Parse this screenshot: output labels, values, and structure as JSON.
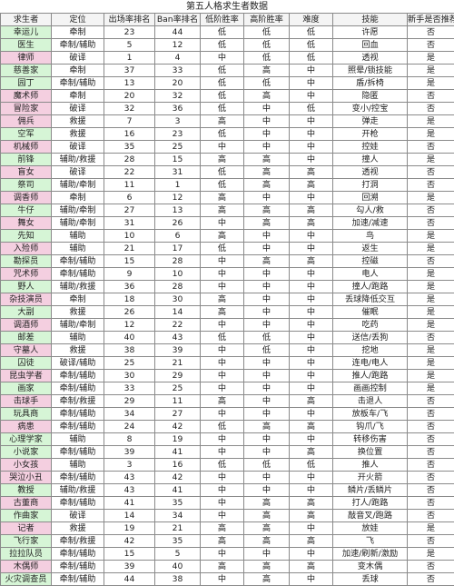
{
  "title": "第五人格求生者数据",
  "headers": [
    "求生者",
    "定位",
    "出场率排名",
    "Ban率排名",
    "低阶胜率",
    "高阶胜率",
    "难度",
    "技能",
    "新手是否推荐"
  ],
  "rows": [
    {
      "name": "幸运儿",
      "role": "牵制",
      "pick": "23",
      "ban": "44",
      "low": "低",
      "high": "低",
      "diff": "低",
      "skill": "许愿",
      "rec": "否",
      "color": "#d6f5d6"
    },
    {
      "name": "医生",
      "role": "牵制/辅助",
      "pick": "5",
      "ban": "12",
      "low": "低",
      "high": "低",
      "diff": "低",
      "skill": "回血",
      "rec": "否",
      "color": "#d6f5d6"
    },
    {
      "name": "律师",
      "role": "破译",
      "pick": "1",
      "ban": "4",
      "low": "中",
      "high": "低",
      "diff": "低",
      "skill": "透视",
      "rec": "是",
      "color": "#f4cfe0"
    },
    {
      "name": "慈善家",
      "role": "牵制",
      "pick": "37",
      "ban": "33",
      "low": "低",
      "high": "高",
      "diff": "中",
      "skill": "照晕/锁技能",
      "rec": "是",
      "color": "#d6f5d6"
    },
    {
      "name": "园丁",
      "role": "牵制/辅助",
      "pick": "13",
      "ban": "20",
      "low": "低",
      "high": "低",
      "diff": "中",
      "skill": "盾/拆椅",
      "rec": "是",
      "color": "#d6f5d6"
    },
    {
      "name": "魔术师",
      "role": "牵制",
      "pick": "20",
      "ban": "32",
      "low": "低",
      "high": "高",
      "diff": "中",
      "skill": "隐匿",
      "rec": "否",
      "color": "#f4cfe0"
    },
    {
      "name": "冒险家",
      "role": "破译",
      "pick": "32",
      "ban": "36",
      "low": "低",
      "high": "中",
      "diff": "低",
      "skill": "变小/控宝",
      "rec": "否",
      "color": "#f4cfe0"
    },
    {
      "name": "佣兵",
      "role": "救援",
      "pick": "7",
      "ban": "3",
      "low": "高",
      "high": "中",
      "diff": "中",
      "skill": "弹走",
      "rec": "是",
      "color": "#f4cfe0"
    },
    {
      "name": "空军",
      "role": "救援",
      "pick": "16",
      "ban": "23",
      "low": "低",
      "high": "中",
      "diff": "中",
      "skill": "开枪",
      "rec": "是",
      "color": "#d6f5d6"
    },
    {
      "name": "机械师",
      "role": "破译",
      "pick": "35",
      "ban": "25",
      "low": "中",
      "high": "中",
      "diff": "中",
      "skill": "控娃",
      "rec": "否",
      "color": "#f4cfe0"
    },
    {
      "name": "前锋",
      "role": "辅助/救援",
      "pick": "28",
      "ban": "15",
      "low": "高",
      "high": "高",
      "diff": "中",
      "skill": "撞人",
      "rec": "是",
      "color": "#d6f5d6"
    },
    {
      "name": "盲女",
      "role": "破译",
      "pick": "22",
      "ban": "31",
      "low": "低",
      "high": "高",
      "diff": "高",
      "skill": "透视",
      "rec": "否",
      "color": "#f4cfe0"
    },
    {
      "name": "祭司",
      "role": "辅助/牵制",
      "pick": "11",
      "ban": "1",
      "low": "低",
      "high": "高",
      "diff": "高",
      "skill": "打洞",
      "rec": "否",
      "color": "#d6f5d6"
    },
    {
      "name": "调香师",
      "role": "牵制",
      "pick": "6",
      "ban": "12",
      "low": "高",
      "high": "中",
      "diff": "中",
      "skill": "回溯",
      "rec": "是",
      "color": "#f4cfe0"
    },
    {
      "name": "牛仔",
      "role": "辅助/牵制",
      "pick": "27",
      "ban": "13",
      "low": "高",
      "high": "高",
      "diff": "高",
      "skill": "勾人/救",
      "rec": "否",
      "color": "#d6f5d6"
    },
    {
      "name": "舞女",
      "role": "辅助/牵制",
      "pick": "31",
      "ban": "26",
      "low": "中",
      "high": "高",
      "diff": "高",
      "skill": "加速/减速",
      "rec": "否",
      "color": "#f4cfe0"
    },
    {
      "name": "先知",
      "role": "辅助",
      "pick": "10",
      "ban": "6",
      "low": "高",
      "high": "中",
      "diff": "中",
      "skill": "鸟",
      "rec": "是",
      "color": "#d6f5d6"
    },
    {
      "name": "入殓师",
      "role": "辅助",
      "pick": "21",
      "ban": "17",
      "low": "低",
      "high": "中",
      "diff": "中",
      "skill": "返生",
      "rec": "是",
      "color": "#f4cfe0"
    },
    {
      "name": "勘探员",
      "role": "牵制/辅助",
      "pick": "15",
      "ban": "28",
      "low": "中",
      "high": "高",
      "diff": "高",
      "skill": "控磁",
      "rec": "否",
      "color": "#d6f5d6"
    },
    {
      "name": "咒术师",
      "role": "牵制/辅助",
      "pick": "9",
      "ban": "10",
      "low": "中",
      "high": "中",
      "diff": "中",
      "skill": "电人",
      "rec": "是",
      "color": "#f4cfe0"
    },
    {
      "name": "野人",
      "role": "辅助/救援",
      "pick": "36",
      "ban": "28",
      "low": "中",
      "high": "中",
      "diff": "中",
      "skill": "撞人/跑路",
      "rec": "是",
      "color": "#d6f5d6"
    },
    {
      "name": "杂技演员",
      "role": "牵制",
      "pick": "18",
      "ban": "30",
      "low": "高",
      "high": "中",
      "diff": "中",
      "skill": "丢球降低交互",
      "rec": "是",
      "color": "#f4cfe0"
    },
    {
      "name": "大副",
      "role": "救援",
      "pick": "26",
      "ban": "14",
      "low": "高",
      "high": "中",
      "diff": "中",
      "skill": "催眠",
      "rec": "是",
      "color": "#d6f5d6"
    },
    {
      "name": "调酒师",
      "role": "辅助/牵制",
      "pick": "12",
      "ban": "22",
      "low": "中",
      "high": "中",
      "diff": "中",
      "skill": "吃药",
      "rec": "是",
      "color": "#f4cfe0"
    },
    {
      "name": "邮差",
      "role": "辅助",
      "pick": "40",
      "ban": "43",
      "low": "低",
      "high": "低",
      "diff": "中",
      "skill": "送信/丢狗",
      "rec": "否",
      "color": "#d6f5d6"
    },
    {
      "name": "守墓人",
      "role": "救援",
      "pick": "38",
      "ban": "39",
      "low": "中",
      "high": "低",
      "diff": "中",
      "skill": "挖地",
      "rec": "是",
      "color": "#f4cfe0"
    },
    {
      "name": "囚徒",
      "role": "破译/辅助",
      "pick": "25",
      "ban": "21",
      "low": "中",
      "high": "中",
      "diff": "中",
      "skill": "连电/电人",
      "rec": "是",
      "color": "#d6f5d6"
    },
    {
      "name": "昆虫学者",
      "role": "牵制/辅助",
      "pick": "30",
      "ban": "29",
      "low": "中",
      "high": "中",
      "diff": "中",
      "skill": "推人/跑路",
      "rec": "是",
      "color": "#f4cfe0"
    },
    {
      "name": "画家",
      "role": "牵制/辅助",
      "pick": "33",
      "ban": "25",
      "low": "中",
      "high": "中",
      "diff": "中",
      "skill": "画画控制",
      "rec": "是",
      "color": "#d6f5d6"
    },
    {
      "name": "击球手",
      "role": "牵制/救援",
      "pick": "29",
      "ban": "11",
      "low": "高",
      "high": "中",
      "diff": "高",
      "skill": "击退人",
      "rec": "否",
      "color": "#f4cfe0"
    },
    {
      "name": "玩具商",
      "role": "牵制/辅助",
      "pick": "34",
      "ban": "27",
      "low": "中",
      "high": "中",
      "diff": "中",
      "skill": "放板车/飞",
      "rec": "否",
      "color": "#d6f5d6"
    },
    {
      "name": "病患",
      "role": "牵制/辅助",
      "pick": "24",
      "ban": "42",
      "low": "低",
      "high": "高",
      "diff": "高",
      "skill": "钩爪/飞",
      "rec": "否",
      "color": "#f4cfe0"
    },
    {
      "name": "心理学家",
      "role": "辅助",
      "pick": "8",
      "ban": "19",
      "low": "中",
      "high": "中",
      "diff": "中",
      "skill": "转移伤害",
      "rec": "否",
      "color": "#d6f5d6"
    },
    {
      "name": "小说家",
      "role": "牵制/辅助",
      "pick": "39",
      "ban": "41",
      "low": "中",
      "high": "中",
      "diff": "高",
      "skill": "换位置",
      "rec": "否",
      "color": "#d6f5d6"
    },
    {
      "name": "小女孩",
      "role": "辅助",
      "pick": "3",
      "ban": "16",
      "low": "低",
      "high": "低",
      "diff": "低",
      "skill": "推人",
      "rec": "否",
      "color": "#f4cfe0"
    },
    {
      "name": "哭泣小丑",
      "role": "牵制/辅助",
      "pick": "43",
      "ban": "42",
      "low": "中",
      "high": "中",
      "diff": "中",
      "skill": "开火箭",
      "rec": "否",
      "color": "#f4cfe0"
    },
    {
      "name": "教授",
      "role": "辅助/救援",
      "pick": "43",
      "ban": "41",
      "low": "中",
      "high": "中",
      "diff": "中",
      "skill": "鳞片/丢鳞片",
      "rec": "否",
      "color": "#d6f5d6"
    },
    {
      "name": "古董商",
      "role": "牵制/辅助",
      "pick": "41",
      "ban": "35",
      "low": "中",
      "high": "高",
      "diff": "高",
      "skill": "打人/跑路",
      "rec": "否",
      "color": "#f4cfe0"
    },
    {
      "name": "作曲家",
      "role": "破译",
      "pick": "14",
      "ban": "34",
      "low": "中",
      "high": "高",
      "diff": "高",
      "skill": "敲音叉/跑路",
      "rec": "否",
      "color": "#d6f5d6"
    },
    {
      "name": "记者",
      "role": "救援",
      "pick": "19",
      "ban": "21",
      "low": "高",
      "high": "高",
      "diff": "中",
      "skill": "放娃",
      "rec": "是",
      "color": "#f4cfe0"
    },
    {
      "name": "飞行家",
      "role": "牵制/救援",
      "pick": "42",
      "ban": "35",
      "low": "高",
      "high": "高",
      "diff": "高",
      "skill": "飞",
      "rec": "否",
      "color": "#d6f5d6"
    },
    {
      "name": "拉拉队员",
      "role": "牵制/辅助",
      "pick": "15",
      "ban": "5",
      "low": "中",
      "high": "中",
      "diff": "中",
      "skill": "加速/刷新/激励",
      "rec": "是",
      "color": "#d6f5d6"
    },
    {
      "name": "木偶师",
      "role": "牵制/辅助",
      "pick": "39",
      "ban": "40",
      "low": "高",
      "high": "高",
      "diff": "高",
      "skill": "变木偶",
      "rec": "否",
      "color": "#f4cfe0"
    },
    {
      "name": "火灾调查员",
      "role": "牵制/辅助",
      "pick": "44",
      "ban": "38",
      "low": "中",
      "high": "高",
      "diff": "中",
      "skill": "丢球",
      "rec": "否",
      "color": "#d6f5d6"
    }
  ]
}
